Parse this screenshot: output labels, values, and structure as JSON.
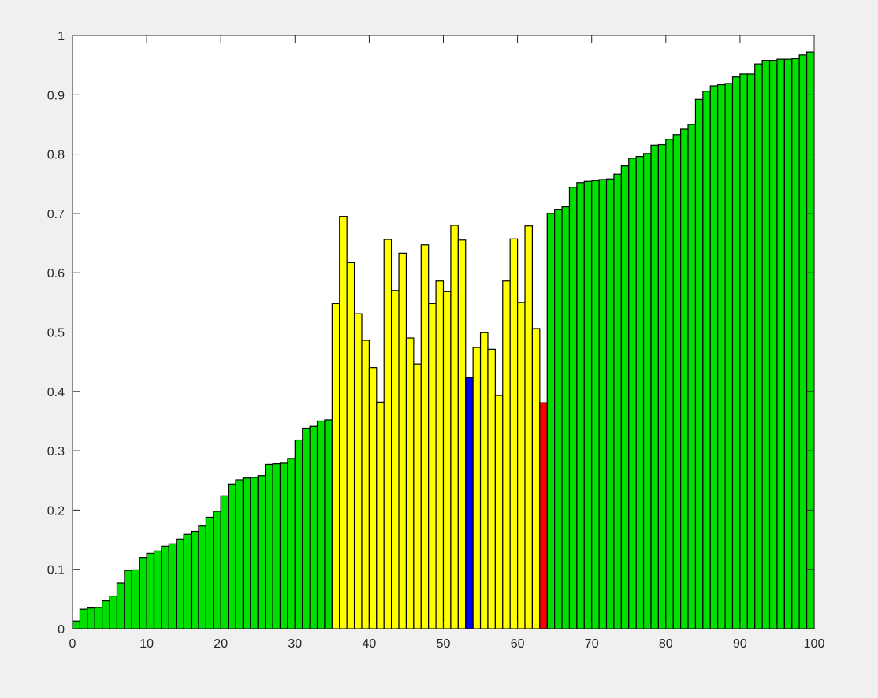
{
  "figure": {
    "background": "#f0f0f0"
  },
  "chart_data": {
    "type": "bar",
    "title": "",
    "xlabel": "",
    "ylabel": "",
    "xlim": [
      0,
      100
    ],
    "ylim": [
      0,
      1
    ],
    "xticks": [
      0,
      10,
      20,
      30,
      40,
      50,
      60,
      70,
      80,
      90,
      100
    ],
    "yticks": [
      0,
      0.1,
      0.2,
      0.3,
      0.4,
      0.5,
      0.6,
      0.7,
      0.8,
      0.9,
      1
    ],
    "grid": false,
    "legend": "none",
    "bar_width": 1,
    "x": [
      1,
      2,
      3,
      4,
      5,
      6,
      7,
      8,
      9,
      10,
      11,
      12,
      13,
      14,
      15,
      16,
      17,
      18,
      19,
      20,
      21,
      22,
      23,
      24,
      25,
      26,
      27,
      28,
      29,
      30,
      31,
      32,
      33,
      34,
      35,
      36,
      37,
      38,
      39,
      40,
      41,
      42,
      43,
      44,
      45,
      46,
      47,
      48,
      49,
      50,
      51,
      52,
      53,
      54,
      55,
      56,
      57,
      58,
      59,
      60,
      61,
      62,
      63,
      64,
      65,
      66,
      67,
      68,
      69,
      70,
      71,
      72,
      73,
      74,
      75,
      76,
      77,
      78,
      79,
      80,
      81,
      82,
      83,
      84,
      85,
      86,
      87,
      88,
      89,
      90,
      91,
      92,
      93,
      94,
      95,
      96,
      97,
      98,
      99,
      100
    ],
    "values": [
      0.013,
      0.033,
      0.035,
      0.036,
      0.047,
      0.055,
      0.077,
      0.098,
      0.099,
      0.12,
      0.127,
      0.131,
      0.139,
      0.143,
      0.151,
      0.159,
      0.164,
      0.173,
      0.188,
      0.198,
      0.224,
      0.244,
      0.251,
      0.254,
      0.255,
      0.258,
      0.277,
      0.278,
      0.279,
      0.287,
      0.318,
      0.338,
      0.341,
      0.35,
      0.352,
      0.548,
      0.695,
      0.617,
      0.531,
      0.486,
      0.44,
      0.382,
      0.656,
      0.57,
      0.633,
      0.49,
      0.446,
      0.647,
      0.548,
      0.586,
      0.568,
      0.68,
      0.655,
      0.423,
      0.474,
      0.499,
      0.471,
      0.393,
      0.586,
      0.657,
      0.55,
      0.679,
      0.506,
      0.381,
      0.7,
      0.707,
      0.711,
      0.744,
      0.752,
      0.754,
      0.755,
      0.757,
      0.758,
      0.766,
      0.78,
      0.793,
      0.796,
      0.801,
      0.815,
      0.816,
      0.825,
      0.833,
      0.842,
      0.85,
      0.892,
      0.906,
      0.915,
      0.917,
      0.919,
      0.93,
      0.935,
      0.935,
      0.952,
      0.958,
      0.958,
      0.96,
      0.96,
      0.961,
      0.967,
      0.972
    ],
    "bar_colors": [
      "#00e000",
      "#00e000",
      "#00e000",
      "#00e000",
      "#00e000",
      "#00e000",
      "#00e000",
      "#00e000",
      "#00e000",
      "#00e000",
      "#00e000",
      "#00e000",
      "#00e000",
      "#00e000",
      "#00e000",
      "#00e000",
      "#00e000",
      "#00e000",
      "#00e000",
      "#00e000",
      "#00e000",
      "#00e000",
      "#00e000",
      "#00e000",
      "#00e000",
      "#00e000",
      "#00e000",
      "#00e000",
      "#00e000",
      "#00e000",
      "#00e000",
      "#00e000",
      "#00e000",
      "#00e000",
      "#00e000",
      "#ffff00",
      "#ffff00",
      "#ffff00",
      "#ffff00",
      "#ffff00",
      "#ffff00",
      "#ffff00",
      "#ffff00",
      "#ffff00",
      "#ffff00",
      "#ffff00",
      "#ffff00",
      "#ffff00",
      "#ffff00",
      "#ffff00",
      "#ffff00",
      "#ffff00",
      "#ffff00",
      "#0000ff",
      "#ffff00",
      "#ffff00",
      "#ffff00",
      "#ffff00",
      "#ffff00",
      "#ffff00",
      "#ffff00",
      "#ffff00",
      "#ffff00",
      "#ff0000",
      "#00e000",
      "#00e000",
      "#00e000",
      "#00e000",
      "#00e000",
      "#00e000",
      "#00e000",
      "#00e000",
      "#00e000",
      "#00e000",
      "#00e000",
      "#00e000",
      "#00e000",
      "#00e000",
      "#00e000",
      "#00e000",
      "#00e000",
      "#00e000",
      "#00e000",
      "#00e000",
      "#00e000",
      "#00e000",
      "#00e000",
      "#00e000",
      "#00e000",
      "#00e000",
      "#00e000",
      "#00e000",
      "#00e000",
      "#00e000",
      "#00e000",
      "#00e000",
      "#00e000",
      "#00e000",
      "#00e000",
      "#00e000"
    ],
    "edge_color": "#000000",
    "axes_color": "#262626"
  }
}
